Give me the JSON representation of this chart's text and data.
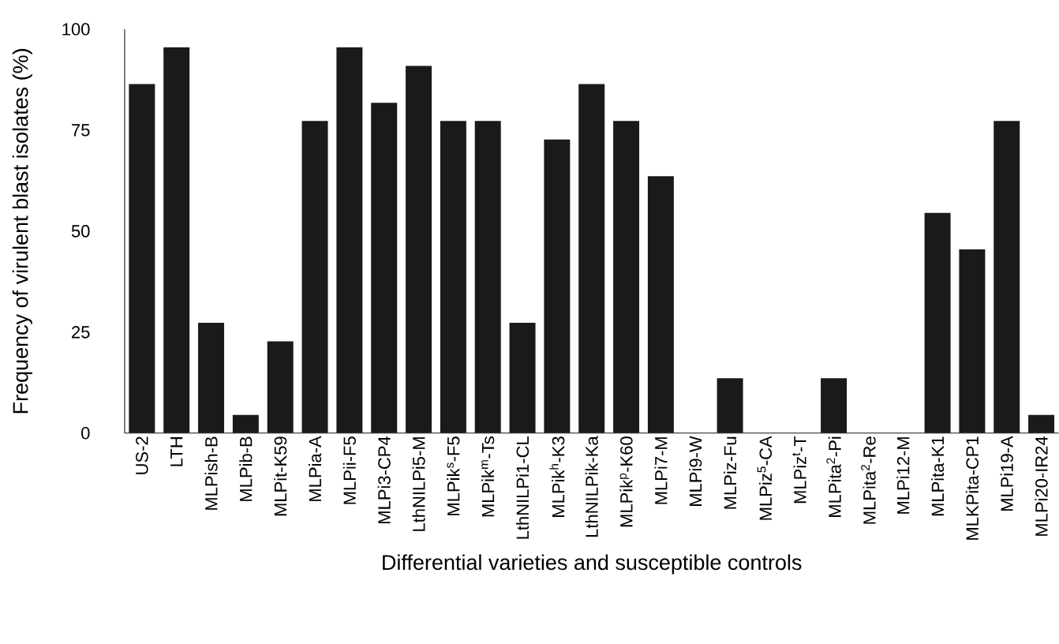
{
  "chart_data": {
    "type": "bar",
    "xlabel": "Differential varieties and susceptible controls",
    "ylabel": "Frequency of virulent blast isolates (%)",
    "categories": [
      "US-2",
      "LTH",
      "MLPish-B",
      "MLPib-B",
      "MLPit-K59",
      "MLPia-A",
      "MLPii-F5",
      "MLPi3-CP4",
      "LthNILPi5-M",
      "MLPik$^{s}$-F5",
      "MLPik$^{m}$-Ts",
      "LthNILPi1-CL",
      "MLPik$^{h}$-K3",
      "LthNILPik-Ka",
      "MLPik$^{p}$-K60",
      "MLPi7-M",
      "MLPi9-W",
      "MLPiz-Fu",
      "MLPiz$^{5}$-CA",
      "MLPiz$^{t}$-T",
      "MLPita$^{2}$-Pi",
      "MLPita$^{2}$-Re",
      "MLPi12-M",
      "MLPita-K1",
      "MLKPita-CP1",
      "MLPi19-A",
      "MLPi20-IR24"
    ],
    "values": [
      86.4,
      95.5,
      27.3,
      4.5,
      22.7,
      77.3,
      95.5,
      81.8,
      90.9,
      77.3,
      77.3,
      27.3,
      72.7,
      86.4,
      77.3,
      63.6,
      0,
      13.6,
      0,
      0,
      13.6,
      0,
      0,
      54.5,
      45.5,
      77.3,
      4.5
    ],
    "color": "#1a1a1a",
    "ylim": [
      0,
      100
    ],
    "yticks": [
      0,
      25,
      50,
      75,
      100
    ],
    "grid": false
  }
}
